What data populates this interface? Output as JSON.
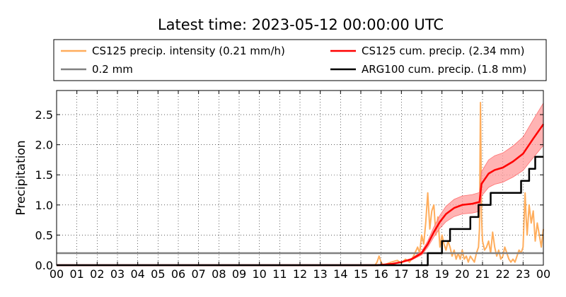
{
  "chart_data": {
    "type": "line",
    "title": "Latest time: 2023-05-12 00:00:00 UTC",
    "xlabel": "",
    "ylabel": "Precipitation",
    "xlim": [
      0,
      24
    ],
    "ylim": [
      0,
      2.9
    ],
    "grid": true,
    "legend_position": "top",
    "x_ticks": [
      "00",
      "01",
      "02",
      "03",
      "04",
      "05",
      "06",
      "07",
      "08",
      "09",
      "10",
      "11",
      "12",
      "13",
      "14",
      "15",
      "16",
      "17",
      "18",
      "19",
      "20",
      "21",
      "22",
      "23",
      "00"
    ],
    "y_ticks": [
      "0.0",
      "0.5",
      "1.0",
      "1.5",
      "2.0",
      "2.5"
    ],
    "y_tick_values": [
      0.0,
      0.5,
      1.0,
      1.5,
      2.0,
      2.5
    ],
    "series": [
      {
        "name": "CS125 precip. intensity (0.21 mm/h)",
        "color": "#ffad5c",
        "style": "line",
        "points": [
          [
            0,
            0
          ],
          [
            15.7,
            0
          ],
          [
            15.8,
            0.05
          ],
          [
            15.9,
            0.15
          ],
          [
            16.0,
            0.05
          ],
          [
            16.1,
            0
          ],
          [
            16.5,
            0.05
          ],
          [
            16.8,
            0.08
          ],
          [
            17.0,
            0.03
          ],
          [
            17.2,
            0.1
          ],
          [
            17.4,
            0.05
          ],
          [
            17.6,
            0.15
          ],
          [
            17.8,
            0.3
          ],
          [
            17.9,
            0.2
          ],
          [
            18.0,
            0.5
          ],
          [
            18.1,
            0.35
          ],
          [
            18.2,
            0.7
          ],
          [
            18.3,
            1.2
          ],
          [
            18.4,
            0.6
          ],
          [
            18.5,
            0.9
          ],
          [
            18.6,
            1.0
          ],
          [
            18.7,
            0.5
          ],
          [
            18.8,
            0.8
          ],
          [
            18.9,
            0.3
          ],
          [
            19.0,
            0.5
          ],
          [
            19.1,
            0.35
          ],
          [
            19.2,
            0.25
          ],
          [
            19.3,
            0.4
          ],
          [
            19.4,
            0.3
          ],
          [
            19.5,
            0.15
          ],
          [
            19.6,
            0.25
          ],
          [
            19.7,
            0.1
          ],
          [
            19.8,
            0.2
          ],
          [
            19.9,
            0.1
          ],
          [
            20.0,
            0.25
          ],
          [
            20.1,
            0.1
          ],
          [
            20.2,
            0.15
          ],
          [
            20.3,
            0.05
          ],
          [
            20.4,
            0.15
          ],
          [
            20.5,
            0.1
          ],
          [
            20.6,
            0.05
          ],
          [
            20.7,
            0.2
          ],
          [
            20.8,
            0.3
          ],
          [
            20.85,
            0.6
          ],
          [
            20.9,
            2.7
          ],
          [
            20.95,
            0.8
          ],
          [
            21.0,
            0.4
          ],
          [
            21.1,
            0.25
          ],
          [
            21.2,
            0.3
          ],
          [
            21.3,
            0.4
          ],
          [
            21.4,
            0.2
          ],
          [
            21.5,
            0.55
          ],
          [
            21.6,
            0.3
          ],
          [
            21.7,
            0.15
          ],
          [
            21.8,
            0.25
          ],
          [
            21.9,
            0.1
          ],
          [
            22.0,
            0.15
          ],
          [
            22.1,
            0.3
          ],
          [
            22.2,
            0.2
          ],
          [
            22.3,
            0.1
          ],
          [
            22.4,
            0.05
          ],
          [
            22.5,
            0.1
          ],
          [
            22.6,
            0.05
          ],
          [
            22.7,
            0.15
          ],
          [
            22.8,
            0.25
          ],
          [
            22.9,
            0.2
          ],
          [
            23.0,
            0.3
          ],
          [
            23.1,
            1.2
          ],
          [
            23.15,
            0.8
          ],
          [
            23.2,
            0.5
          ],
          [
            23.3,
            1.0
          ],
          [
            23.4,
            0.7
          ],
          [
            23.5,
            0.9
          ],
          [
            23.6,
            0.4
          ],
          [
            23.7,
            0.7
          ],
          [
            23.8,
            0.5
          ],
          [
            23.9,
            0.3
          ],
          [
            24.0,
            0.6
          ]
        ]
      },
      {
        "name": "0.2 mm",
        "color": "#808080",
        "style": "line",
        "points": [
          [
            0,
            0.2
          ],
          [
            24,
            0.2
          ]
        ]
      },
      {
        "name": "CS125 cum. precip. (2.34 mm)",
        "color": "#ff0000",
        "style": "line",
        "band_color": "#ff9a9a",
        "band_fraction": 0.15,
        "points": [
          [
            0,
            0
          ],
          [
            15.8,
            0
          ],
          [
            16.5,
            0.02
          ],
          [
            17.0,
            0.05
          ],
          [
            17.5,
            0.1
          ],
          [
            18.0,
            0.2
          ],
          [
            18.3,
            0.35
          ],
          [
            18.6,
            0.55
          ],
          [
            18.9,
            0.72
          ],
          [
            19.2,
            0.85
          ],
          [
            19.6,
            0.95
          ],
          [
            20.0,
            1.0
          ],
          [
            20.5,
            1.02
          ],
          [
            20.85,
            1.05
          ],
          [
            20.95,
            1.35
          ],
          [
            21.3,
            1.52
          ],
          [
            21.6,
            1.58
          ],
          [
            22.0,
            1.62
          ],
          [
            22.5,
            1.72
          ],
          [
            23.0,
            1.85
          ],
          [
            23.5,
            2.1
          ],
          [
            24.0,
            2.34
          ]
        ]
      },
      {
        "name": "ARG100 cum. precip. (1.8 mm)",
        "color": "#000000",
        "style": "step",
        "points": [
          [
            0,
            0
          ],
          [
            18.3,
            0
          ],
          [
            18.3,
            0.2
          ],
          [
            19.0,
            0.2
          ],
          [
            19.0,
            0.4
          ],
          [
            19.4,
            0.4
          ],
          [
            19.4,
            0.6
          ],
          [
            20.4,
            0.6
          ],
          [
            20.4,
            0.8
          ],
          [
            20.8,
            0.8
          ],
          [
            20.8,
            1.0
          ],
          [
            21.4,
            1.0
          ],
          [
            21.4,
            1.2
          ],
          [
            22.9,
            1.2
          ],
          [
            22.9,
            1.4
          ],
          [
            23.3,
            1.4
          ],
          [
            23.3,
            1.6
          ],
          [
            23.6,
            1.6
          ],
          [
            23.6,
            1.8
          ],
          [
            24.0,
            1.8
          ]
        ]
      }
    ]
  }
}
